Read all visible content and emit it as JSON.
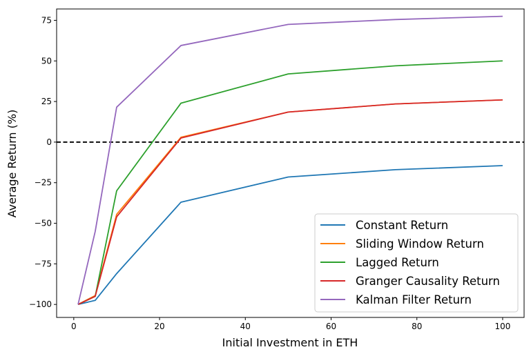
{
  "chart_data": {
    "type": "line",
    "title": "",
    "xlabel": "Initial Investment in ETH",
    "ylabel": "Average Return (%)",
    "xlim": [
      -4,
      105
    ],
    "ylim": [
      -108,
      82
    ],
    "xticks": [
      0,
      20,
      40,
      60,
      80,
      100
    ],
    "yticks": [
      -100,
      -75,
      -50,
      -25,
      0,
      25,
      50,
      75
    ],
    "x": [
      1,
      5,
      10,
      25,
      50,
      75,
      100
    ],
    "reference_line": {
      "y": 0,
      "style": "dashed",
      "color": "#000000"
    },
    "legend_position": "lower-right",
    "grid": false,
    "series": [
      {
        "name": "Constant Return",
        "color": "#1f77b4",
        "values": [
          -100,
          -97.5,
          -81,
          -37,
          -21.5,
          -17,
          -14.5
        ]
      },
      {
        "name": "Sliding Window Return",
        "color": "#ff7f0e",
        "values": [
          -100,
          -94.5,
          -44.5,
          3,
          18.5,
          23.5,
          26
        ]
      },
      {
        "name": "Lagged Return",
        "color": "#2ca02c",
        "values": [
          -100,
          -95,
          -30,
          24,
          42,
          47,
          50
        ]
      },
      {
        "name": "Granger Causality Return",
        "color": "#d62728",
        "values": [
          -100,
          -95,
          -46,
          2.5,
          18.5,
          23.5,
          26
        ]
      },
      {
        "name": "Kalman Filter Return",
        "color": "#9467bd",
        "values": [
          -100,
          -55,
          21.5,
          59.5,
          72.5,
          75.5,
          77.5
        ]
      }
    ]
  }
}
